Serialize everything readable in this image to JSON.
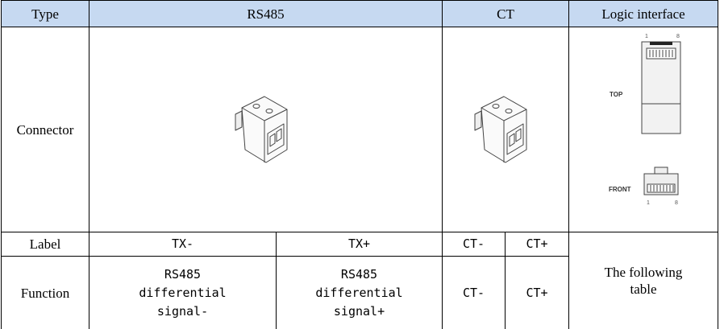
{
  "table": {
    "header": [
      "Type",
      "RS485",
      "CT",
      "Logic interface"
    ],
    "connector_row": {
      "label": "Connector",
      "logic_image": {
        "top_label": "TOP",
        "front_label": "FRONT",
        "pin_first": "1",
        "pin_last": "8"
      }
    },
    "label_row": [
      "Label",
      "TX-",
      "TX+",
      "CT-",
      "CT+"
    ],
    "function_row": {
      "label": "Function",
      "cells": [
        [
          "RS485",
          "differential",
          "signal-"
        ],
        [
          "RS485",
          "differential",
          "signal+"
        ],
        [
          "CT-"
        ],
        [
          "CT+"
        ]
      ],
      "logic": [
        "The following",
        "table"
      ]
    }
  }
}
